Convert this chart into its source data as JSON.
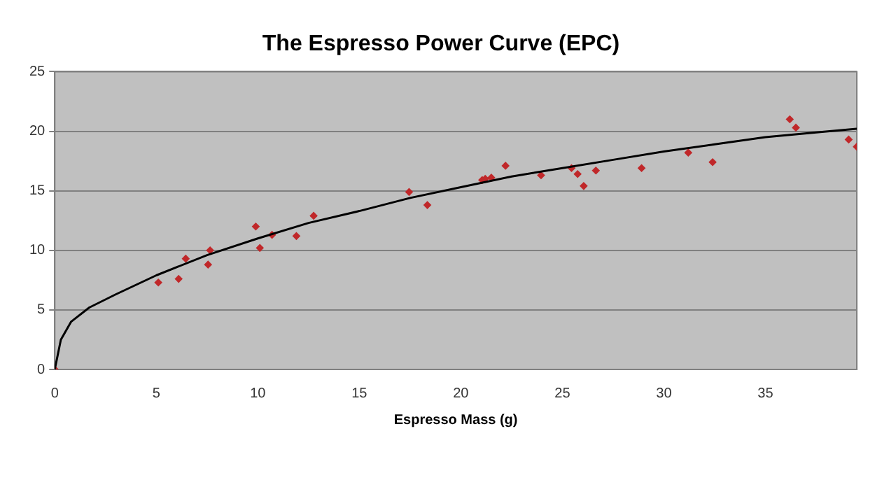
{
  "chart_data": {
    "type": "scatter",
    "title": "The Espresso Power Curve (EPC)",
    "xlabel": "Espresso Mass (g)",
    "xlim": [
      0,
      39.5
    ],
    "xticks": [
      0,
      5,
      10,
      15,
      20,
      25,
      30,
      35
    ],
    "ylim": [
      0,
      25
    ],
    "yticks": [
      0,
      5,
      10,
      15,
      20,
      25
    ],
    "grid": "y",
    "legend": false,
    "series": [
      {
        "type": "scatter",
        "marker": "diamond",
        "color": "#c0282a",
        "x": [
          0,
          5.1,
          6.1,
          6.45,
          7.55,
          7.65,
          9.9,
          10.1,
          10.7,
          11.9,
          12.75,
          17.45,
          18.35,
          21.05,
          21.2,
          21.5,
          22.2,
          23.95,
          25.45,
          25.75,
          26.05,
          26.65,
          28.9,
          31.2,
          32.4,
          36.2,
          36.5,
          39.1,
          39.5
        ],
        "values": [
          0,
          7.3,
          7.6,
          9.3,
          8.8,
          10.0,
          12.0,
          10.2,
          11.3,
          11.2,
          12.9,
          14.9,
          13.8,
          15.9,
          16.0,
          16.1,
          17.1,
          16.3,
          16.9,
          16.4,
          15.4,
          16.7,
          16.9,
          18.2,
          17.4,
          21.0,
          20.3,
          19.3,
          18.7
        ]
      },
      {
        "type": "line",
        "marker": "none",
        "line_style": "solid",
        "color": "#000000",
        "x": [
          0,
          0.3,
          0.8,
          1.7,
          3,
          5,
          7.5,
          10,
          12.5,
          15,
          17.5,
          20,
          22.5,
          25,
          27.5,
          30,
          32.5,
          35,
          37.5,
          39.5
        ],
        "values": [
          0,
          2.5,
          4,
          5.2,
          6.3,
          7.9,
          9.6,
          11,
          12.3,
          13.3,
          14.4,
          15.3,
          16.2,
          16.9,
          17.6,
          18.3,
          18.9,
          19.5,
          19.9,
          20.2
        ]
      }
    ]
  }
}
